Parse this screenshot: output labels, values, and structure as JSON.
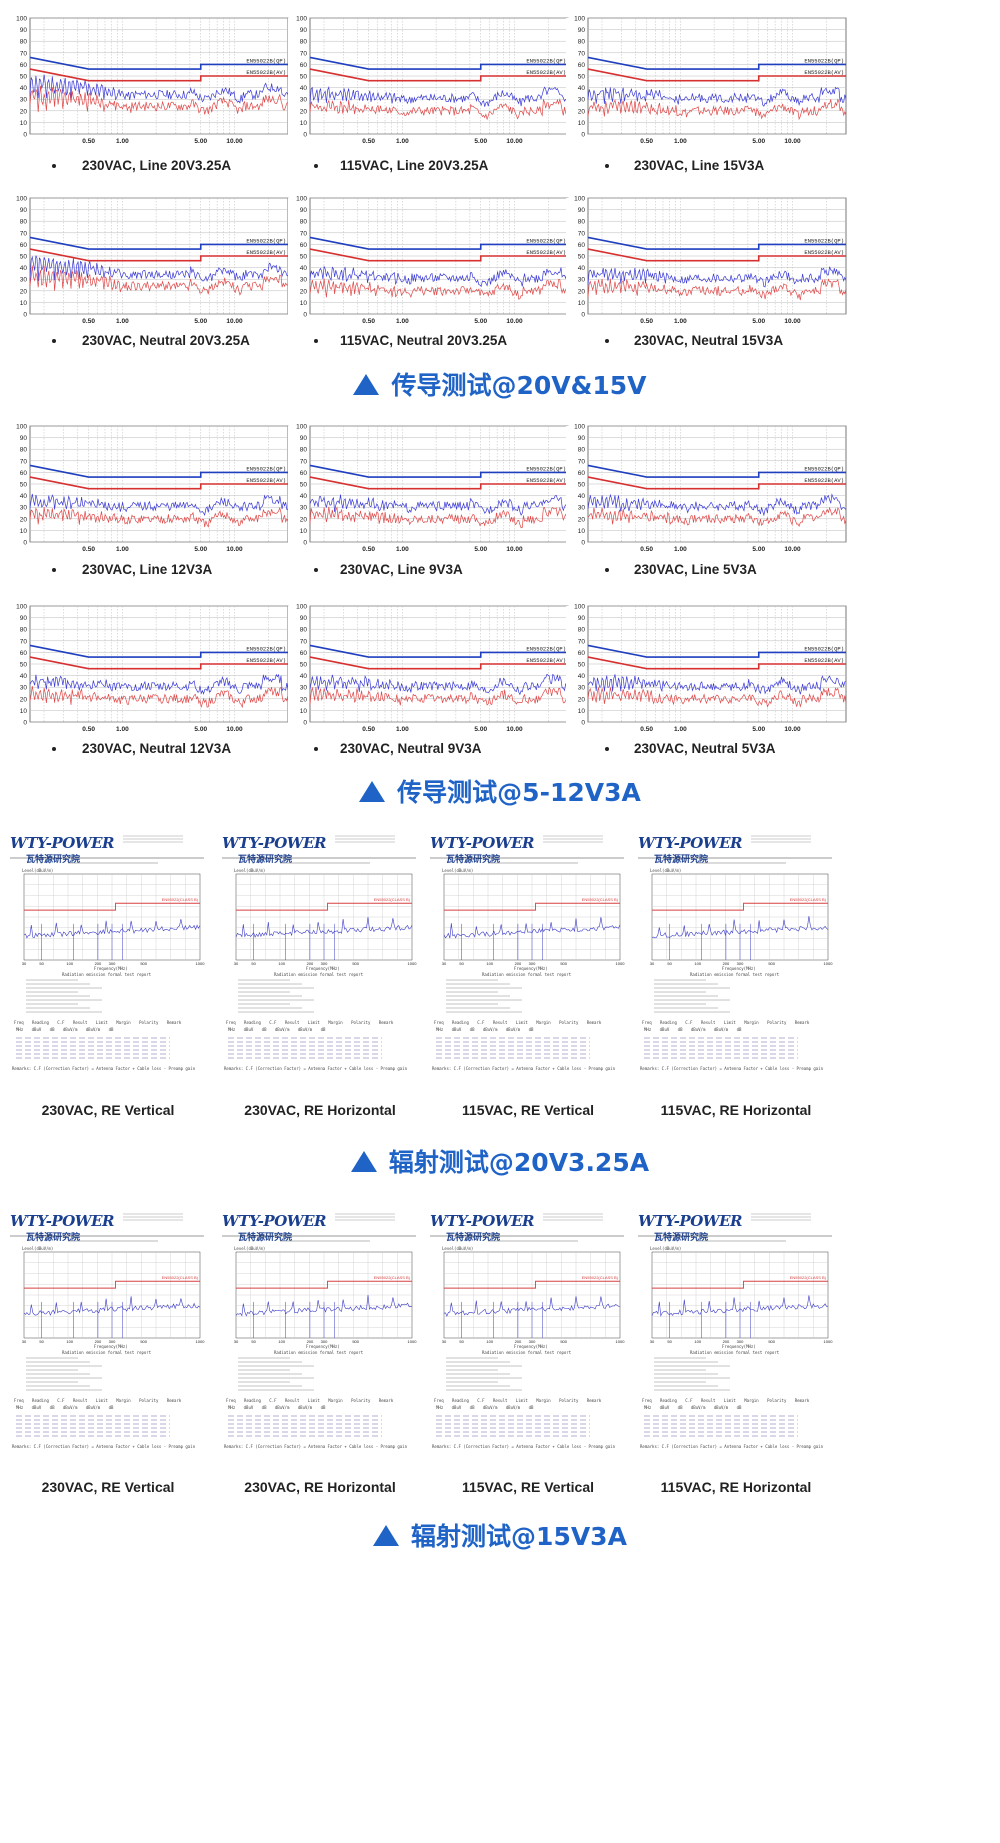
{
  "limit_labels": {
    "qp": "EN55022B(QP)",
    "av": "EN55022B(AV)"
  },
  "conducted_axes": {
    "y_ticks": [
      "100",
      "90",
      "80",
      "70",
      "60",
      "50",
      "40",
      "30",
      "20",
      "10",
      "0"
    ],
    "x_ticks": [
      "0.50",
      "1.00",
      "5.00",
      "10.00"
    ]
  },
  "colors": {
    "qp_limit": "#1f3fbf",
    "av_limit": "#d63030",
    "qp_trace": "#3a3ad6",
    "av_trace": "#e04848",
    "title_blue": "#1f63c7"
  },
  "sections": [
    {
      "title": "传导测试@20V&15V"
    },
    {
      "title": "传导测试@5-12V3A"
    },
    {
      "title": "辐射测试@20V3.25A"
    },
    {
      "title": "辐射测试@15V3A"
    }
  ],
  "conducted_captions": [
    "230VAC, Line 20V3.25A",
    "115VAC, Line 20V3.25A",
    "230VAC, Line 15V3A",
    "230VAC, Neutral 20V3.25A",
    "115VAC, Neutral 20V3.25A",
    "230VAC, Neutral 15V3A",
    "230VAC, Line 12V3A",
    "230VAC, Line 9V3A",
    "230VAC, Line 5V3A",
    "230VAC, Neutral 12V3A",
    "230VAC, Neutral 9V3A",
    "230VAC, Neutral 5V3A"
  ],
  "re_captions": [
    "230VAC, RE Vertical",
    "230VAC, RE Horizontal",
    "115VAC, RE Vertical",
    "115VAC, RE Horizontal",
    "230VAC, RE Vertical",
    "230VAC, RE Horizontal",
    "115VAC, RE Vertical",
    "115VAC, RE Horizontal"
  ],
  "re_report": {
    "logo": "WTY-POWER",
    "logo_sub": "瓦特源研究院",
    "y_label": "Level(dBuV/m)",
    "x_label": "Frequency(MHz)",
    "x_ticks": [
      "30",
      "50",
      "100",
      "200",
      "300",
      "500",
      "1000"
    ],
    "limit_label": "EN55022(CLASS B)",
    "report_title": "Radiation emission formal test report",
    "table_header": [
      "Freq",
      "Reading",
      "C.F",
      "Result",
      "Limit",
      "Margin",
      "Polarity",
      "Remark"
    ],
    "table_units": [
      "MHz",
      "dBuV",
      "dB",
      "dBuV/m",
      "dBuV/m",
      "dB",
      "",
      ""
    ],
    "remarks": "Remarks: C.F (Correction Factor) = Antenna Factor + Cable loss - Preamp gain"
  },
  "chart_data": [
    {
      "type": "line",
      "caption": "230VAC, Line 20V3.25A",
      "x_scale": "log",
      "xlim": [
        0.15,
        30
      ],
      "ylim": [
        0,
        100
      ],
      "series": [
        {
          "name": "EN55022B(QP)",
          "x": [
            0.15,
            0.5,
            5,
            30
          ],
          "y": [
            66,
            56,
            60,
            60
          ]
        },
        {
          "name": "EN55022B(AV)",
          "x": [
            0.15,
            0.5,
            5,
            30
          ],
          "y": [
            56,
            46,
            50,
            50
          ]
        }
      ]
    },
    {
      "type": "line",
      "caption": "115VAC, Line 20V3.25A",
      "x_scale": "log",
      "xlim": [
        0.15,
        30
      ],
      "ylim": [
        0,
        100
      ],
      "series": [
        {
          "name": "EN55022B(QP)",
          "x": [
            0.15,
            0.5,
            5,
            30
          ],
          "y": [
            66,
            56,
            60,
            60
          ]
        },
        {
          "name": "EN55022B(AV)",
          "x": [
            0.15,
            0.5,
            5,
            30
          ],
          "y": [
            56,
            46,
            50,
            50
          ]
        }
      ]
    },
    {
      "type": "line",
      "caption": "230VAC, Line 15V3A",
      "x_scale": "log",
      "xlim": [
        0.15,
        30
      ],
      "ylim": [
        0,
        100
      ],
      "series": [
        {
          "name": "EN55022B(QP)",
          "x": [
            0.15,
            0.5,
            5,
            30
          ],
          "y": [
            66,
            56,
            60,
            60
          ]
        },
        {
          "name": "EN55022B(AV)",
          "x": [
            0.15,
            0.5,
            5,
            30
          ],
          "y": [
            56,
            46,
            50,
            50
          ]
        }
      ]
    },
    {
      "type": "line",
      "caption": "230VAC, Neutral 20V3.25A",
      "x_scale": "log",
      "xlim": [
        0.15,
        30
      ],
      "ylim": [
        0,
        100
      ],
      "series": [
        {
          "name": "EN55022B(QP)",
          "x": [
            0.15,
            0.5,
            5,
            30
          ],
          "y": [
            66,
            56,
            60,
            60
          ]
        },
        {
          "name": "EN55022B(AV)",
          "x": [
            0.15,
            0.5,
            5,
            30
          ],
          "y": [
            56,
            46,
            50,
            50
          ]
        }
      ]
    },
    {
      "type": "line",
      "caption": "115VAC, Neutral 20V3.25A",
      "x_scale": "log",
      "xlim": [
        0.15,
        30
      ],
      "ylim": [
        0,
        100
      ],
      "series": [
        {
          "name": "EN55022B(QP)",
          "x": [
            0.15,
            0.5,
            5,
            30
          ],
          "y": [
            66,
            56,
            60,
            60
          ]
        },
        {
          "name": "EN55022B(AV)",
          "x": [
            0.15,
            0.5,
            5,
            30
          ],
          "y": [
            56,
            46,
            50,
            50
          ]
        }
      ]
    },
    {
      "type": "line",
      "caption": "230VAC, Neutral 15V3A",
      "x_scale": "log",
      "xlim": [
        0.15,
        30
      ],
      "ylim": [
        0,
        100
      ],
      "series": [
        {
          "name": "EN55022B(QP)",
          "x": [
            0.15,
            0.5,
            5,
            30
          ],
          "y": [
            66,
            56,
            60,
            60
          ]
        },
        {
          "name": "EN55022B(AV)",
          "x": [
            0.15,
            0.5,
            5,
            30
          ],
          "y": [
            56,
            46,
            50,
            50
          ]
        }
      ]
    },
    {
      "type": "line",
      "caption": "230VAC, Line 12V3A",
      "x_scale": "log",
      "xlim": [
        0.15,
        30
      ],
      "ylim": [
        0,
        100
      ],
      "series": [
        {
          "name": "EN55022B(QP)",
          "x": [
            0.15,
            0.5,
            5,
            30
          ],
          "y": [
            66,
            56,
            60,
            60
          ]
        },
        {
          "name": "EN55022B(AV)",
          "x": [
            0.15,
            0.5,
            5,
            30
          ],
          "y": [
            56,
            46,
            50,
            50
          ]
        }
      ]
    },
    {
      "type": "line",
      "caption": "230VAC, Line 9V3A",
      "x_scale": "log",
      "xlim": [
        0.15,
        30
      ],
      "ylim": [
        0,
        100
      ],
      "series": [
        {
          "name": "EN55022B(QP)",
          "x": [
            0.15,
            0.5,
            5,
            30
          ],
          "y": [
            66,
            56,
            60,
            60
          ]
        },
        {
          "name": "EN55022B(AV)",
          "x": [
            0.15,
            0.5,
            5,
            30
          ],
          "y": [
            56,
            46,
            50,
            50
          ]
        }
      ]
    },
    {
      "type": "line",
      "caption": "230VAC, Line 5V3A",
      "x_scale": "log",
      "xlim": [
        0.15,
        30
      ],
      "ylim": [
        0,
        100
      ],
      "series": [
        {
          "name": "EN55022B(QP)",
          "x": [
            0.15,
            0.5,
            5,
            30
          ],
          "y": [
            66,
            56,
            60,
            60
          ]
        },
        {
          "name": "EN55022B(AV)",
          "x": [
            0.15,
            0.5,
            5,
            30
          ],
          "y": [
            56,
            46,
            50,
            50
          ]
        }
      ]
    },
    {
      "type": "line",
      "caption": "230VAC, Neutral 12V3A",
      "x_scale": "log",
      "xlim": [
        0.15,
        30
      ],
      "ylim": [
        0,
        100
      ],
      "series": [
        {
          "name": "EN55022B(QP)",
          "x": [
            0.15,
            0.5,
            5,
            30
          ],
          "y": [
            66,
            56,
            60,
            60
          ]
        },
        {
          "name": "EN55022B(AV)",
          "x": [
            0.15,
            0.5,
            5,
            30
          ],
          "y": [
            56,
            46,
            50,
            50
          ]
        }
      ]
    },
    {
      "type": "line",
      "caption": "230VAC, Neutral 9V3A",
      "x_scale": "log",
      "xlim": [
        0.15,
        30
      ],
      "ylim": [
        0,
        100
      ],
      "series": [
        {
          "name": "EN55022B(QP)",
          "x": [
            0.15,
            0.5,
            5,
            30
          ],
          "y": [
            66,
            56,
            60,
            60
          ]
        },
        {
          "name": "EN55022B(AV)",
          "x": [
            0.15,
            0.5,
            5,
            30
          ],
          "y": [
            56,
            46,
            50,
            50
          ]
        }
      ]
    },
    {
      "type": "line",
      "caption": "230VAC, Neutral 5V3A",
      "x_scale": "log",
      "xlim": [
        0.15,
        30
      ],
      "ylim": [
        0,
        100
      ],
      "series": [
        {
          "name": "EN55022B(QP)",
          "x": [
            0.15,
            0.5,
            5,
            30
          ],
          "y": [
            66,
            56,
            60,
            60
          ]
        },
        {
          "name": "EN55022B(AV)",
          "x": [
            0.15,
            0.5,
            5,
            30
          ],
          "y": [
            56,
            46,
            50,
            50
          ]
        }
      ]
    }
  ]
}
